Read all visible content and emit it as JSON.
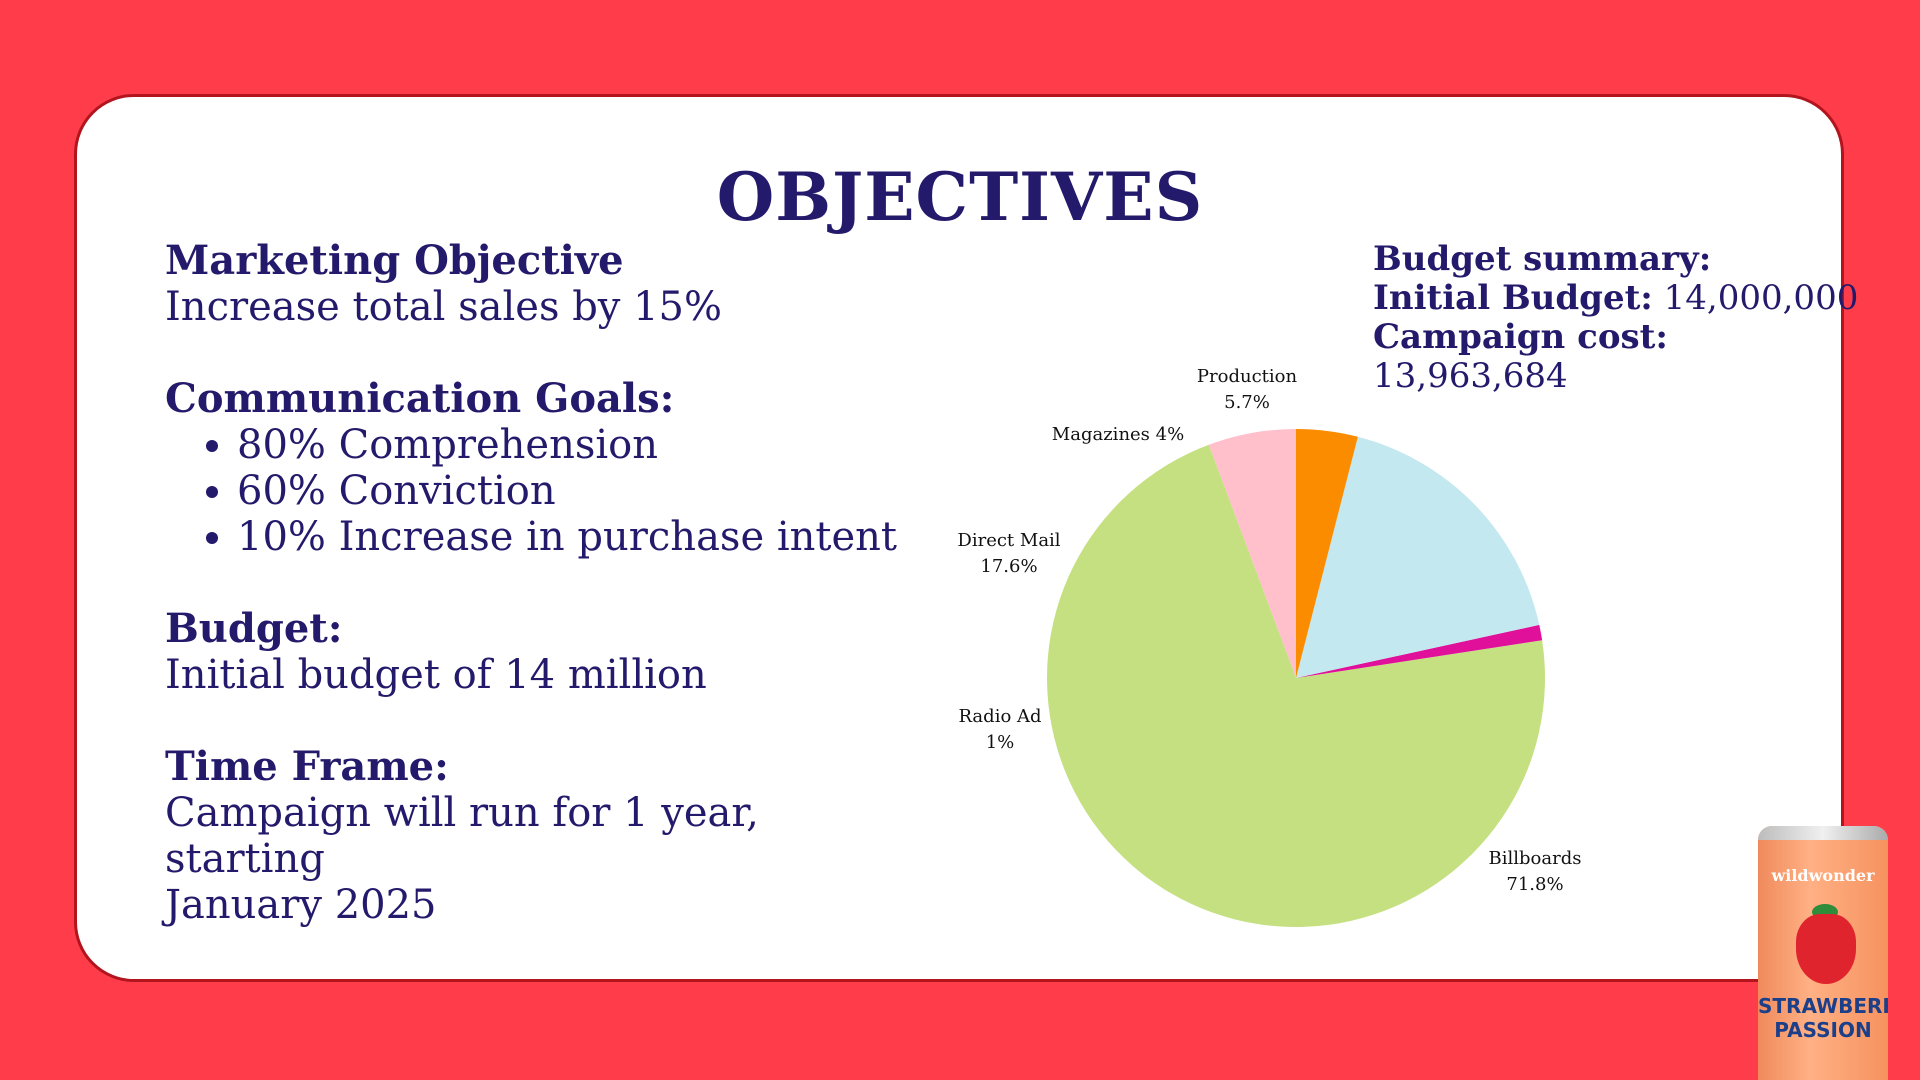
{
  "title": "OBJECTIVES",
  "marketing": {
    "heading": "Marketing Objective",
    "text": "Increase total sales by 15%"
  },
  "communication": {
    "heading": "Communication Goals:",
    "goals": [
      "80% Comprehension",
      "60% Conviction",
      "10% Increase in purchase intent"
    ]
  },
  "budget": {
    "heading": "Budget:",
    "text": "Initial budget of 14 million"
  },
  "timeframe": {
    "heading": "Time Frame:",
    "line1": "Campaign will run for 1 year, starting",
    "line2": "January 2025"
  },
  "budget_summary": {
    "heading": "Budget summary:",
    "initial_label": "Initial Budget:",
    "initial_value": "14,000,000",
    "cost_label": "Campaign cost:",
    "cost_value": "13,963,684"
  },
  "product": {
    "brand": "wildwonder",
    "name_line1": "STRAWBERRY",
    "name_line2": "PASSION"
  },
  "colors": {
    "background": "#ff3d4a",
    "text": "#241a6b"
  },
  "chart_data": {
    "type": "pie",
    "title": "",
    "slices": [
      {
        "label": "Production",
        "value": 5.7,
        "display": "5.7%",
        "color": "#ffc0cb"
      },
      {
        "label": "Billboards",
        "value": 71.8,
        "display": "71.8%",
        "color": "#c5e080"
      },
      {
        "label": "Radio Ad",
        "value": 1,
        "display": "1%",
        "color": "#e0109b"
      },
      {
        "label": "Direct Mail",
        "value": 17.6,
        "display": "17.6%",
        "color": "#c3e8f0"
      },
      {
        "label": "Magazines",
        "value": 4,
        "display": "4%",
        "color": "#fb8c00"
      }
    ]
  }
}
